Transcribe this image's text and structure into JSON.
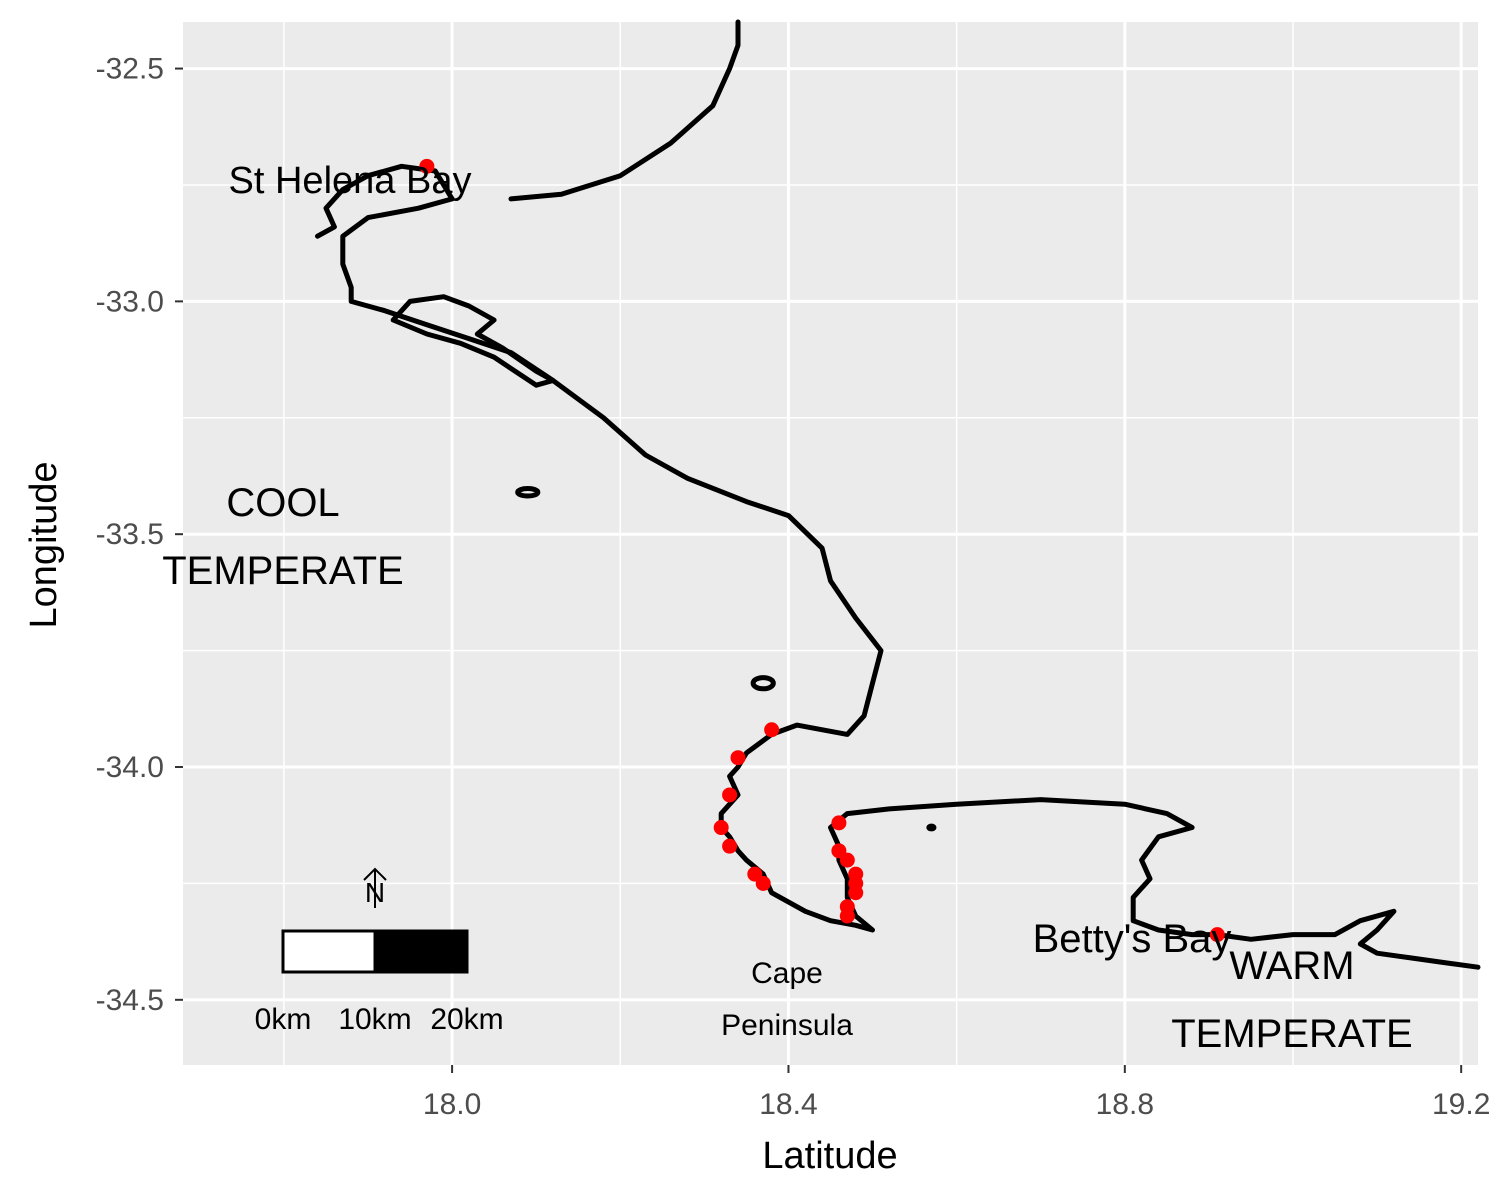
{
  "chart_data": {
    "type": "scatter",
    "xlabel": "Latitude",
    "ylabel": "Longitude",
    "xlim": [
      17.68,
      19.22
    ],
    "ylim": [
      -34.64,
      -32.4
    ],
    "x_ticks": [
      {
        "value": 18.0,
        "label": "18.0"
      },
      {
        "value": 18.4,
        "label": "18.4"
      },
      {
        "value": 18.8,
        "label": "18.8"
      },
      {
        "value": 19.2,
        "label": "19.2"
      }
    ],
    "y_ticks": [
      {
        "value": -32.5,
        "label": "-32.5"
      },
      {
        "value": -33.0,
        "label": "-33.0"
      },
      {
        "value": -33.5,
        "label": "-33.5"
      },
      {
        "value": -34.0,
        "label": "-34.0"
      },
      {
        "value": -34.5,
        "label": "-34.5"
      }
    ],
    "x_minor": [
      17.8,
      18.2,
      18.6,
      19.0
    ],
    "y_minor": [
      -32.75,
      -33.25,
      -33.75,
      -34.25
    ],
    "grid": true,
    "colors": {
      "panel_background": "#ebebeb",
      "grid": "#ffffff",
      "coastline": "#000000",
      "points": "#ff0000"
    },
    "sites": {
      "x": [
        17.97,
        18.38,
        18.34,
        18.33,
        18.32,
        18.33,
        18.36,
        18.37,
        18.46,
        18.46,
        18.47,
        18.48,
        18.48,
        18.48,
        18.47,
        18.47,
        18.91
      ],
      "y": [
        -32.71,
        -33.92,
        -33.98,
        -34.06,
        -34.13,
        -34.17,
        -34.23,
        -34.25,
        -34.12,
        -34.18,
        -34.2,
        -34.23,
        -34.25,
        -34.27,
        -34.3,
        -34.32,
        -34.36
      ]
    },
    "coastline": [
      [
        18.0,
        -32.78
      ],
      [
        17.96,
        -32.8
      ],
      [
        17.9,
        -32.82
      ],
      [
        17.87,
        -32.86
      ],
      [
        17.87,
        -32.92
      ],
      [
        17.88,
        -32.97
      ],
      [
        17.88,
        -33.0
      ],
      [
        17.92,
        -33.02
      ],
      [
        17.97,
        -33.05
      ],
      [
        18.02,
        -33.08
      ],
      [
        18.07,
        -33.11
      ],
      [
        18.12,
        -33.17
      ],
      [
        18.18,
        -33.25
      ],
      [
        18.23,
        -33.33
      ],
      [
        18.28,
        -33.38
      ],
      [
        18.35,
        -33.43
      ],
      [
        18.4,
        -33.46
      ],
      [
        18.44,
        -33.53
      ],
      [
        18.45,
        -33.6
      ],
      [
        18.48,
        -33.68
      ],
      [
        18.51,
        -33.75
      ],
      [
        18.5,
        -33.82
      ],
      [
        18.49,
        -33.89
      ],
      [
        18.47,
        -33.93
      ],
      [
        18.41,
        -33.91
      ],
      [
        18.38,
        -33.93
      ],
      [
        18.35,
        -33.97
      ],
      [
        18.34,
        -34.0
      ],
      [
        18.33,
        -34.02
      ],
      [
        18.34,
        -34.06
      ],
      [
        18.32,
        -34.1
      ],
      [
        18.32,
        -34.13
      ],
      [
        18.33,
        -34.15
      ],
      [
        18.34,
        -34.18
      ],
      [
        18.35,
        -34.2
      ],
      [
        18.37,
        -34.23
      ],
      [
        18.38,
        -34.27
      ],
      [
        18.42,
        -34.31
      ],
      [
        18.45,
        -34.33
      ],
      [
        18.48,
        -34.34
      ],
      [
        18.5,
        -34.35
      ],
      [
        18.48,
        -34.32
      ],
      [
        18.47,
        -34.28
      ],
      [
        18.47,
        -34.24
      ],
      [
        18.46,
        -34.2
      ],
      [
        18.46,
        -34.17
      ],
      [
        18.45,
        -34.13
      ],
      [
        18.47,
        -34.1
      ],
      [
        18.52,
        -34.09
      ],
      [
        18.6,
        -34.08
      ],
      [
        18.7,
        -34.07
      ],
      [
        18.8,
        -34.08
      ],
      [
        18.85,
        -34.1
      ],
      [
        18.88,
        -34.13
      ],
      [
        18.84,
        -34.15
      ],
      [
        18.82,
        -34.2
      ],
      [
        18.83,
        -34.24
      ],
      [
        18.81,
        -34.28
      ],
      [
        18.81,
        -34.33
      ],
      [
        18.84,
        -34.35
      ],
      [
        18.88,
        -34.36
      ],
      [
        18.91,
        -34.36
      ],
      [
        18.95,
        -34.37
      ],
      [
        19.0,
        -34.36
      ],
      [
        19.05,
        -34.36
      ],
      [
        19.08,
        -34.33
      ],
      [
        19.12,
        -34.31
      ],
      [
        19.1,
        -34.35
      ],
      [
        19.08,
        -34.38
      ],
      [
        19.1,
        -34.4
      ],
      [
        19.14,
        -34.41
      ],
      [
        19.18,
        -34.42
      ],
      [
        19.22,
        -34.43
      ]
    ],
    "coastline_north": [
      [
        18.07,
        -32.78
      ],
      [
        18.13,
        -32.77
      ],
      [
        18.2,
        -32.73
      ],
      [
        18.26,
        -32.66
      ],
      [
        18.31,
        -32.58
      ],
      [
        18.33,
        -32.5
      ],
      [
        18.34,
        -32.45
      ],
      [
        18.34,
        -32.4
      ]
    ],
    "coastline_bay": [
      [
        18.0,
        -32.78
      ],
      [
        17.98,
        -32.72
      ],
      [
        17.94,
        -32.71
      ],
      [
        17.9,
        -32.73
      ],
      [
        17.87,
        -32.76
      ],
      [
        17.85,
        -32.8
      ],
      [
        17.86,
        -32.84
      ],
      [
        17.84,
        -32.86
      ]
    ],
    "islands": [
      {
        "center": [
          18.37,
          -33.82
        ],
        "rx": 0.012,
        "ry": 0.012
      },
      {
        "center": [
          18.09,
          -33.41
        ],
        "rx": 0.012,
        "ry": 0.008
      },
      {
        "center": [
          18.57,
          -34.13
        ],
        "rx": 0.003,
        "ry": 0.003
      }
    ],
    "lagoon": [
      [
        17.93,
        -33.04
      ],
      [
        17.95,
        -33.0
      ],
      [
        17.99,
        -32.99
      ],
      [
        18.02,
        -33.01
      ],
      [
        18.05,
        -33.04
      ],
      [
        18.03,
        -33.07
      ],
      [
        18.06,
        -33.1
      ],
      [
        18.1,
        -33.15
      ],
      [
        18.12,
        -33.17
      ],
      [
        18.1,
        -33.18
      ],
      [
        18.05,
        -33.12
      ],
      [
        18.01,
        -33.09
      ],
      [
        17.97,
        -33.07
      ],
      [
        17.93,
        -33.04
      ]
    ],
    "labels": {
      "st_helena": "St Helena Bay",
      "cool_line1": "COOL",
      "cool_line2": "TEMPERATE",
      "cape_line1": "Cape",
      "cape_line2": "Peninsula",
      "bettys": "Betty's Bay",
      "warm_line1": "WARM",
      "warm_line2": "TEMPERATE"
    },
    "scale_bar": {
      "labels": [
        "0km",
        "10km",
        "20km"
      ],
      "north_label": "N"
    }
  }
}
